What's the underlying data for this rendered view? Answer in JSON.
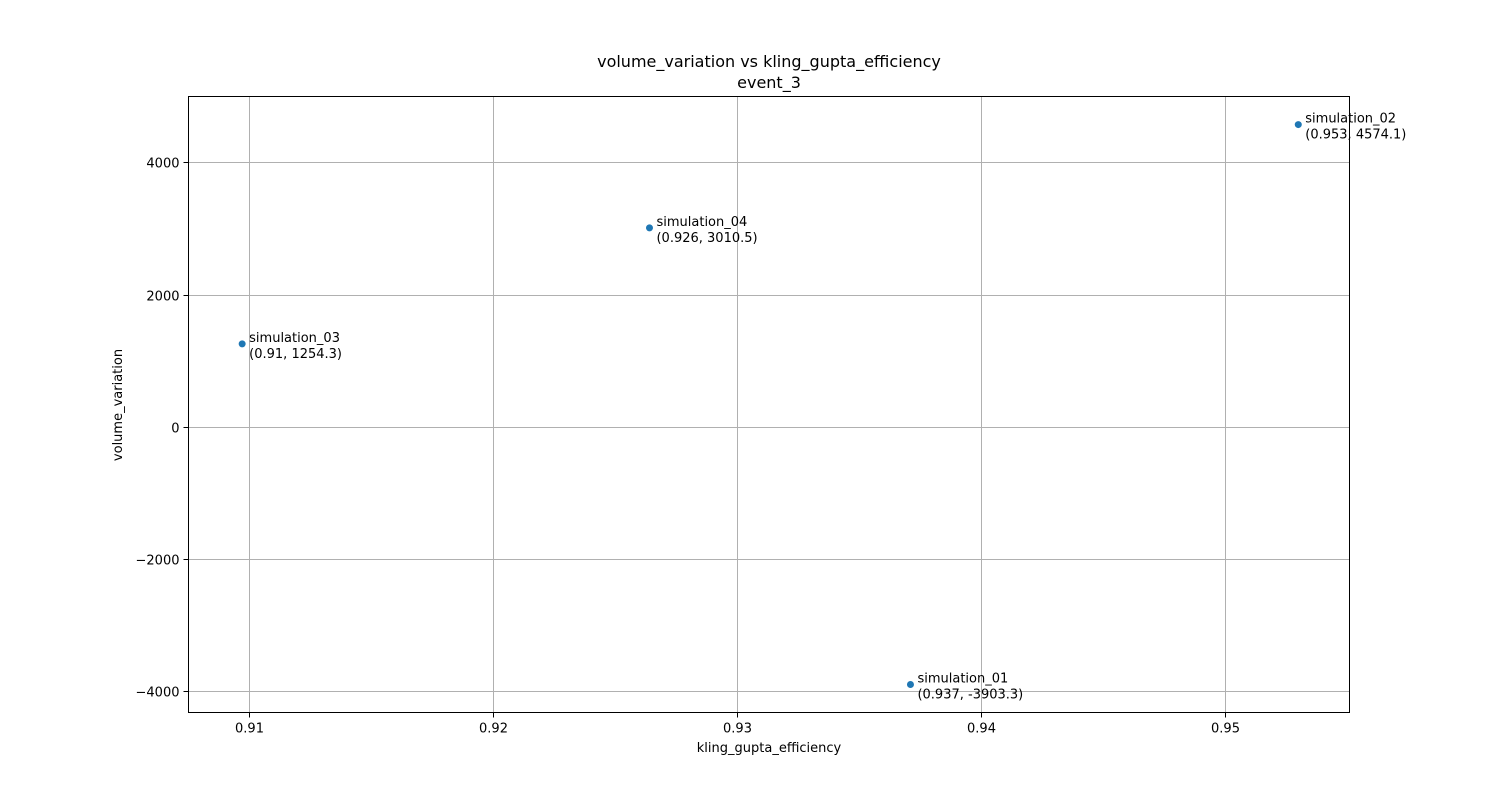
{
  "chart_data": {
    "type": "scatter",
    "title": "volume_variation vs kling_gupta_efficiency",
    "subtitle": "event_3",
    "xlabel": "kling_gupta_efficiency",
    "ylabel": "volume_variation",
    "xlim": [
      0.9075,
      0.9551
    ],
    "ylim": [
      -4327,
      4999
    ],
    "xticks": [
      0.91,
      0.92,
      0.93,
      0.94,
      0.95
    ],
    "xtick_labels": [
      "0.91",
      "0.92",
      "0.93",
      "0.94",
      "0.95"
    ],
    "yticks": [
      -4000,
      -2000,
      0,
      2000,
      4000
    ],
    "ytick_labels": [
      "−4000",
      "−2000",
      "0",
      "2000",
      "4000"
    ],
    "grid": true,
    "point_color": "#1f77b4",
    "points": [
      {
        "name": "simulation_01",
        "label": "(0.937, -3903.3)",
        "x": 0.9371,
        "y": -3903.3
      },
      {
        "name": "simulation_02",
        "label": "(0.953, 4574.1)",
        "x": 0.953,
        "y": 4574.1
      },
      {
        "name": "simulation_03",
        "label": "(0.91, 1254.3)",
        "x": 0.9097,
        "y": 1254.3
      },
      {
        "name": "simulation_04",
        "label": "(0.926, 3010.5)",
        "x": 0.9264,
        "y": 3010.5
      }
    ]
  }
}
